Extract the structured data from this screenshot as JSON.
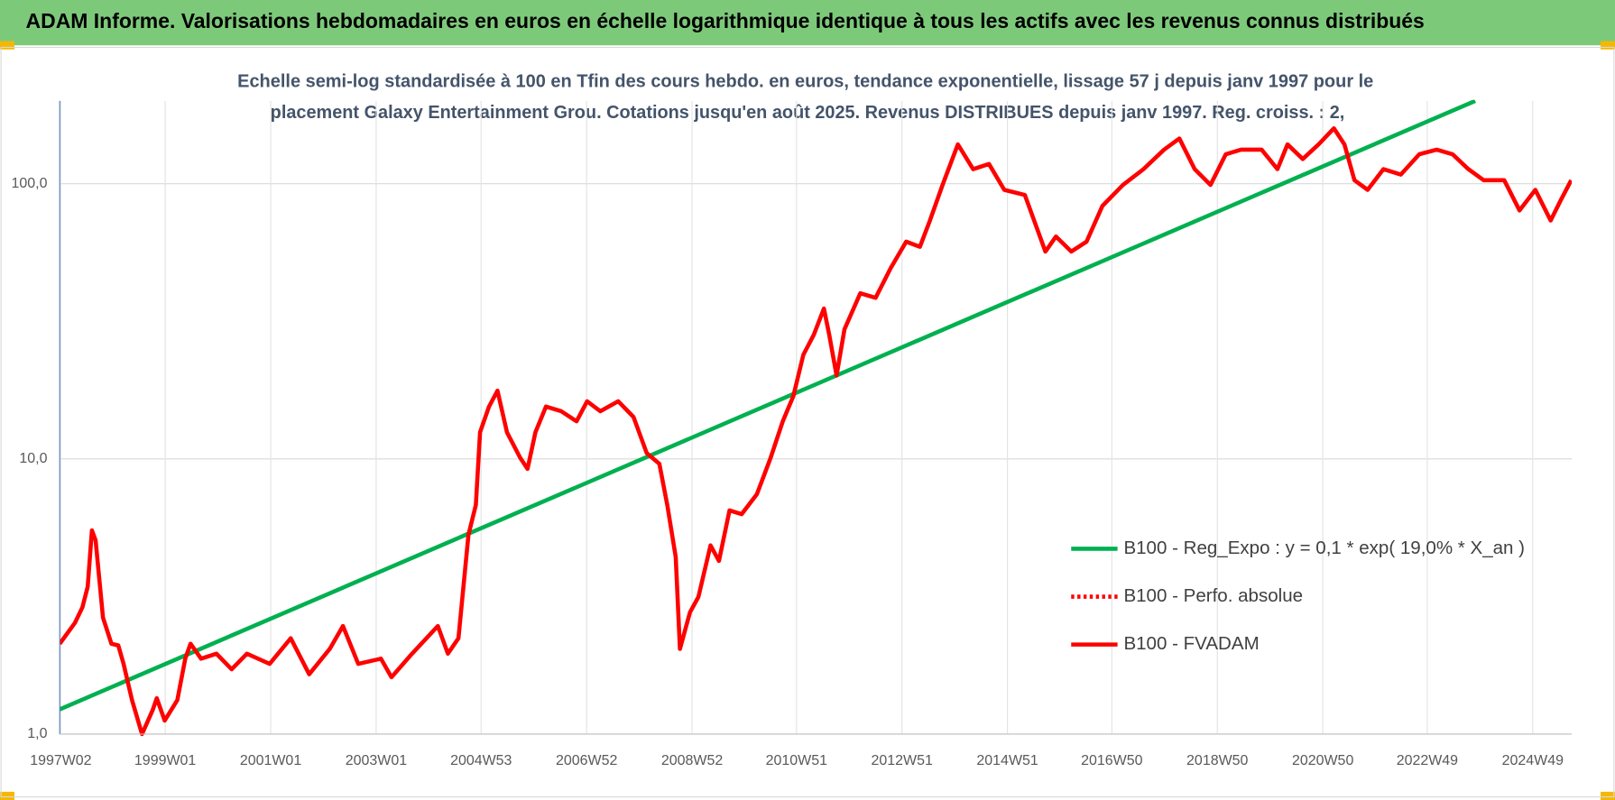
{
  "header": {
    "title": "ADAM Informe. Valorisations hebdomadaires en euros en échelle logarithmique identique à tous les actifs avec les revenus connus distribués"
  },
  "chart_data": {
    "type": "line",
    "title": [
      "Echelle semi-log standardisée à 100 en Tfin des cours hebdo. en euros, tendance exponentielle, lissage 57 j depuis janv 1997 pour le",
      "placement Galaxy Entertainment Grou. Cotations jusqu'en août 2025.  Revenus DISTRIBUES depuis janv 1997.  Reg. croiss. : 2,"
    ],
    "log_scale": true,
    "grid": true,
    "legend": "right",
    "xlim": [
      1997.0,
      2025.67
    ],
    "xticks": [
      {
        "value": 1997.02,
        "label": "1997W02"
      },
      {
        "value": 1999.0,
        "label": "1999W01"
      },
      {
        "value": 2001.0,
        "label": "2001W01"
      },
      {
        "value": 2003.0,
        "label": "2003W01"
      },
      {
        "value": 2004.99,
        "label": "2004W53"
      },
      {
        "value": 2006.99,
        "label": "2006W52"
      },
      {
        "value": 2008.99,
        "label": "2008W52"
      },
      {
        "value": 2010.97,
        "label": "2010W51"
      },
      {
        "value": 2012.97,
        "label": "2012W51"
      },
      {
        "value": 2014.97,
        "label": "2014W51"
      },
      {
        "value": 2016.95,
        "label": "2016W50"
      },
      {
        "value": 2018.95,
        "label": "2018W50"
      },
      {
        "value": 2020.95,
        "label": "2020W50"
      },
      {
        "value": 2022.93,
        "label": "2022W49"
      },
      {
        "value": 2024.93,
        "label": "2024W49"
      }
    ],
    "ylim": [
      1,
      200
    ],
    "yticks": [
      {
        "value": 1,
        "label": "1,0"
      },
      {
        "value": 10,
        "label": "10,0"
      },
      {
        "value": 100,
        "label": "100,0"
      }
    ],
    "series": [
      {
        "name": "B100 - Reg_Expo : y = 0,1 * exp( 19,0% *  X_an )",
        "color": "#00b050",
        "x": [
          1997.0,
          2023.84
        ],
        "values": [
          1.23,
          200
        ]
      },
      {
        "name": "B100 - Perfo. absolue",
        "color": "#ff0000",
        "dash": "dotted",
        "x": [],
        "values": []
      },
      {
        "name": "B100 - FVADAM",
        "color": "#ff0000",
        "x": [
          1997.0,
          1997.29,
          1997.43,
          1997.53,
          1997.61,
          1997.68,
          1997.82,
          1997.98,
          1998.11,
          1998.21,
          1998.37,
          1998.56,
          1998.76,
          1998.84,
          1998.99,
          1999.23,
          1999.38,
          1999.48,
          1999.68,
          1999.97,
          2000.26,
          2000.55,
          2000.98,
          2001.38,
          2001.73,
          2002.12,
          2002.37,
          2002.66,
          2003.09,
          2003.29,
          2003.68,
          2004.17,
          2004.36,
          2004.56,
          2004.75,
          2004.89,
          2004.97,
          2005.14,
          2005.3,
          2005.48,
          2005.73,
          2005.87,
          2006.02,
          2006.22,
          2006.51,
          2006.8,
          2007.0,
          2007.25,
          2007.59,
          2007.88,
          2008.13,
          2008.37,
          2008.52,
          2008.68,
          2008.76,
          2008.95,
          2009.11,
          2009.34,
          2009.5,
          2009.7,
          2009.93,
          2010.22,
          2010.48,
          2010.71,
          2010.91,
          2011.1,
          2011.3,
          2011.49,
          2011.59,
          2011.73,
          2011.88,
          2012.18,
          2012.47,
          2012.76,
          2013.05,
          2013.31,
          2013.5,
          2013.74,
          2014.03,
          2014.32,
          2014.62,
          2014.91,
          2015.3,
          2015.69,
          2015.89,
          2016.18,
          2016.47,
          2016.77,
          2017.16,
          2017.55,
          2017.94,
          2018.23,
          2018.52,
          2018.82,
          2019.11,
          2019.4,
          2019.79,
          2020.09,
          2020.28,
          2020.57,
          2020.87,
          2021.16,
          2021.36,
          2021.55,
          2021.8,
          2022.1,
          2022.43,
          2022.78,
          2023.11,
          2023.41,
          2023.71,
          2024.0,
          2024.39,
          2024.68,
          2024.98,
          2025.27,
          2025.46,
          2025.66
        ],
        "values": [
          2.13,
          2.54,
          2.89,
          3.43,
          5.5,
          5.06,
          2.65,
          2.13,
          2.1,
          1.8,
          1.33,
          1.0,
          1.22,
          1.35,
          1.12,
          1.33,
          1.88,
          2.13,
          1.88,
          1.96,
          1.72,
          1.96,
          1.8,
          2.23,
          1.65,
          2.04,
          2.47,
          1.8,
          1.88,
          1.61,
          1.96,
          2.47,
          1.96,
          2.23,
          5.3,
          6.8,
          12.5,
          15.5,
          17.7,
          12.5,
          10.1,
          9.2,
          12.5,
          15.5,
          14.9,
          13.7,
          16.2,
          14.9,
          16.2,
          14.2,
          10.5,
          9.6,
          6.8,
          4.4,
          2.04,
          2.77,
          3.15,
          4.85,
          4.26,
          6.5,
          6.3,
          7.45,
          10.1,
          13.7,
          16.9,
          23.9,
          28.3,
          35.2,
          28.3,
          20.1,
          29.6,
          40,
          38.5,
          49.5,
          61.6,
          59,
          73.5,
          99,
          139,
          113,
          118,
          95,
          91,
          56.7,
          64.3,
          56.7,
          61.6,
          83,
          99,
          113,
          133,
          146,
          113,
          99,
          128,
          133,
          133,
          113,
          139,
          123,
          139,
          159,
          139,
          103,
          95,
          113,
          108,
          128,
          133,
          128,
          113,
          103,
          103,
          80,
          95,
          73.5,
          87,
          103
        ]
      }
    ]
  }
}
